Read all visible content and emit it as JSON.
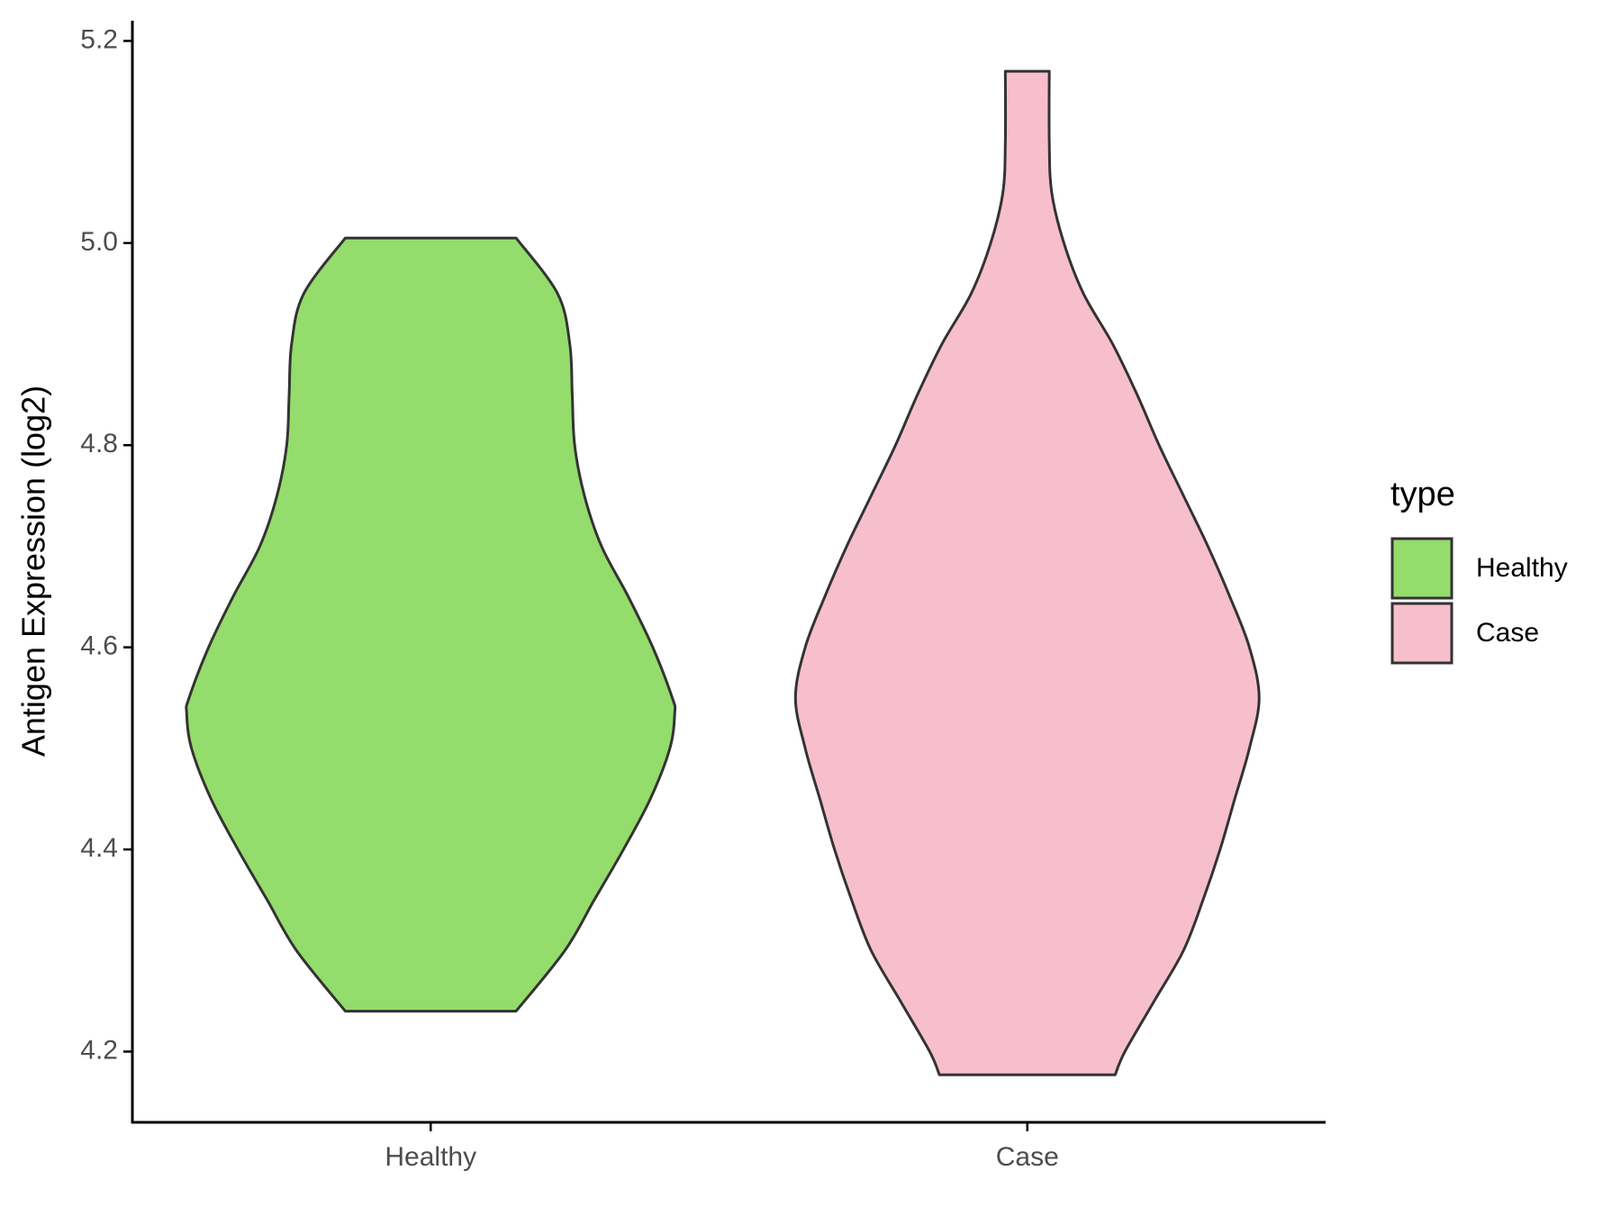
{
  "chart_data": {
    "type": "violin",
    "y_label": "Antigen Expression (log2)",
    "categories": [
      "Healthy",
      "Case"
    ],
    "legend_title": "type",
    "series": [
      {
        "name": "Healthy",
        "color": "#94dc6b",
        "y": [
          5.005,
          4.95,
          4.9,
          4.85,
          4.8,
          4.75,
          4.7,
          4.65,
          4.6,
          4.55,
          4.535,
          4.5,
          4.45,
          4.4,
          4.35,
          4.3,
          4.24
        ],
        "density": [
          0.35,
          0.52,
          0.57,
          0.58,
          0.59,
          0.63,
          0.7,
          0.81,
          0.91,
          0.99,
          1.0,
          0.98,
          0.9,
          0.79,
          0.67,
          0.55,
          0.35
        ]
      },
      {
        "name": "Case",
        "color": "#f7bfcb",
        "y": [
          5.17,
          5.1,
          5.05,
          5.0,
          4.95,
          4.9,
          4.85,
          4.8,
          4.75,
          4.7,
          4.65,
          4.6,
          4.55,
          4.5,
          4.45,
          4.4,
          4.35,
          4.3,
          4.25,
          4.2,
          4.177
        ],
        "density": [
          0.09,
          0.09,
          0.1,
          0.15,
          0.23,
          0.35,
          0.45,
          0.54,
          0.64,
          0.74,
          0.83,
          0.91,
          0.95,
          0.91,
          0.85,
          0.79,
          0.72,
          0.64,
          0.52,
          0.4,
          0.36
        ]
      }
    ],
    "ylim": [
      4.13,
      5.22
    ],
    "yticks": [
      4.2,
      4.4,
      4.6,
      4.8,
      {
        "value": 5,
        "label": "5.0"
      },
      5.2
    ],
    "grid": false,
    "legend_position": "right"
  }
}
